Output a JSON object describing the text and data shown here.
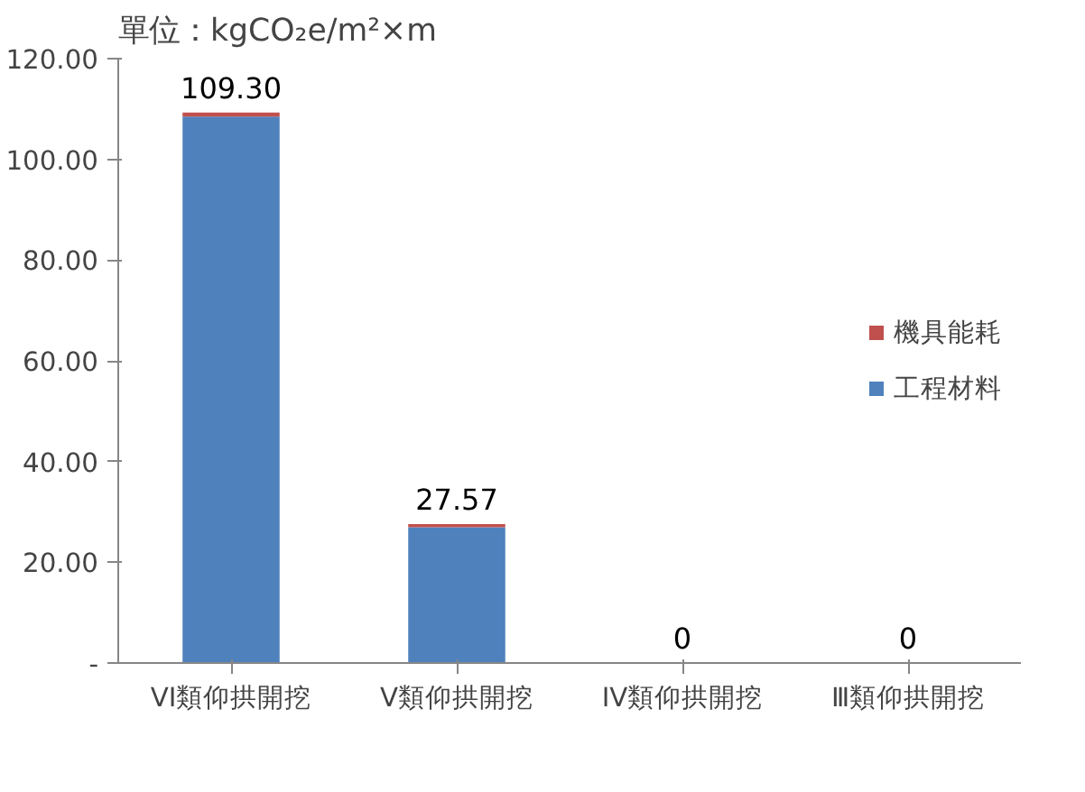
{
  "chart_data": {
    "type": "bar",
    "stacked": true,
    "title": "單位：kgCO₂e/m²×m",
    "categories": [
      "VI類仰拱開挖",
      "V類仰拱開挖",
      "IV類仰拱開挖",
      "Ⅲ類仰拱開挖"
    ],
    "series": [
      {
        "name": "工程材料",
        "color": "#4f81bd",
        "values": [
          108.5,
          26.97,
          0,
          0
        ]
      },
      {
        "name": "機具能耗",
        "color": "#c0504d",
        "values": [
          0.8,
          0.6,
          0,
          0
        ]
      }
    ],
    "totals": [
      "109.30",
      "27.57",
      "0",
      "0"
    ],
    "ylim": [
      0,
      120
    ],
    "yticks": [
      {
        "value": 0,
        "label": "-"
      },
      {
        "value": 20,
        "label": "20.00"
      },
      {
        "value": 40,
        "label": "40.00"
      },
      {
        "value": 60,
        "label": "60.00"
      },
      {
        "value": 80,
        "label": "80.00"
      },
      {
        "value": 100,
        "label": "100.00"
      },
      {
        "value": 120,
        "label": "120.00"
      }
    ],
    "grid": false,
    "legend": "right"
  }
}
